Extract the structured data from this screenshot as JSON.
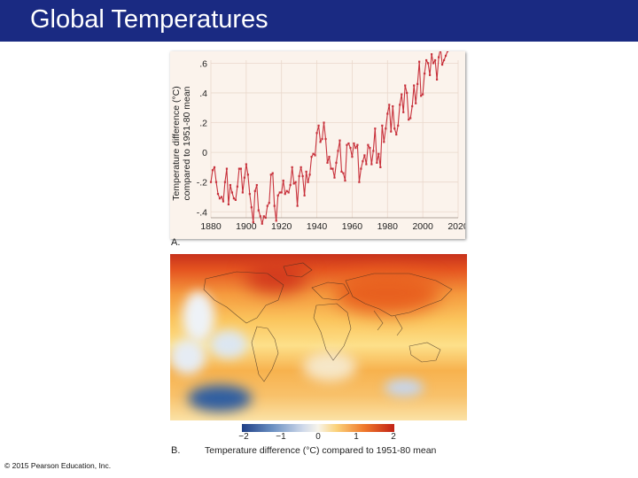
{
  "slide": {
    "title": "Global Temperatures",
    "copyright": "© 2015 Pearson Education, Inc."
  },
  "panel_a": {
    "label": "A."
  },
  "panel_b": {
    "label": "B.",
    "colorbar_ticks": [
      "−2",
      "−1",
      "0",
      "1",
      "2"
    ],
    "colorbar_caption": "Temperature difference (°C) compared to 1951-80 mean"
  },
  "colors": {
    "title_bar": "#1a2a82",
    "line": "#c8323c",
    "grid": "#ead8cc"
  },
  "chart_data": {
    "type": "line",
    "ylabel": "Temperature difference (°C) compared to 1951-80 mean",
    "xlabel": "",
    "xlim": [
      1880,
      2020
    ],
    "ylim": [
      -0.44,
      0.62
    ],
    "x_ticks": [
      1880,
      1900,
      1920,
      1940,
      1960,
      1980,
      2000,
      2020
    ],
    "x_tick_labels": [
      "1880",
      "1900",
      "1920",
      "1940",
      "1960",
      "1980",
      "2000",
      "2020"
    ],
    "y_ticks": [
      0.6,
      0.4,
      0.2,
      0,
      -0.2,
      -0.4
    ],
    "y_tick_labels": [
      ".6",
      ".4",
      ".2",
      "0",
      "-.2",
      "-.4"
    ],
    "grid": true,
    "series": [
      {
        "color": "#c8323c",
        "x": [
          1880,
          1881,
          1882,
          1883,
          1884,
          1885,
          1886,
          1887,
          1888,
          1889,
          1890,
          1891,
          1892,
          1893,
          1894,
          1895,
          1896,
          1897,
          1898,
          1899,
          1900,
          1901,
          1902,
          1903,
          1904,
          1905,
          1906,
          1907,
          1908,
          1909,
          1910,
          1911,
          1912,
          1913,
          1914,
          1915,
          1916,
          1917,
          1918,
          1919,
          1920,
          1921,
          1922,
          1923,
          1924,
          1925,
          1926,
          1927,
          1928,
          1929,
          1930,
          1931,
          1932,
          1933,
          1934,
          1935,
          1936,
          1937,
          1938,
          1939,
          1940,
          1941,
          1942,
          1943,
          1944,
          1945,
          1946,
          1947,
          1948,
          1949,
          1950,
          1951,
          1952,
          1953,
          1954,
          1955,
          1956,
          1957,
          1958,
          1959,
          1960,
          1961,
          1962,
          1963,
          1964,
          1965,
          1966,
          1967,
          1968,
          1969,
          1970,
          1971,
          1972,
          1973,
          1974,
          1975,
          1976,
          1977,
          1978,
          1979,
          1980,
          1981,
          1982,
          1983,
          1984,
          1985,
          1986,
          1987,
          1988,
          1989,
          1990,
          1991,
          1992,
          1993,
          1994,
          1995,
          1996,
          1997,
          1998,
          1999,
          2000,
          2001,
          2002,
          2003,
          2004,
          2005,
          2006,
          2007,
          2008,
          2009,
          2010,
          2011,
          2012,
          2013,
          2014
        ],
        "y": [
          -0.2,
          -0.12,
          -0.1,
          -0.2,
          -0.28,
          -0.31,
          -0.3,
          -0.33,
          -0.2,
          -0.11,
          -0.35,
          -0.22,
          -0.27,
          -0.31,
          -0.32,
          -0.23,
          -0.11,
          -0.11,
          -0.27,
          -0.17,
          -0.08,
          -0.15,
          -0.28,
          -0.37,
          -0.47,
          -0.26,
          -0.22,
          -0.39,
          -0.43,
          -0.48,
          -0.43,
          -0.44,
          -0.36,
          -0.34,
          -0.15,
          -0.14,
          -0.36,
          -0.46,
          -0.29,
          -0.27,
          -0.27,
          -0.19,
          -0.28,
          -0.26,
          -0.27,
          -0.22,
          -0.1,
          -0.21,
          -0.2,
          -0.36,
          -0.16,
          -0.1,
          -0.16,
          -0.29,
          -0.13,
          -0.2,
          -0.15,
          -0.03,
          -0.01,
          -0.02,
          0.13,
          0.18,
          0.07,
          0.09,
          0.2,
          0.09,
          -0.07,
          -0.03,
          -0.11,
          -0.11,
          -0.17,
          -0.07,
          0.01,
          0.08,
          -0.13,
          -0.14,
          -0.19,
          0.05,
          0.06,
          0.03,
          -0.03,
          0.06,
          0.03,
          0.05,
          -0.2,
          -0.11,
          -0.06,
          -0.02,
          -0.08,
          0.05,
          0.03,
          -0.08,
          0.01,
          0.16,
          -0.07,
          -0.01,
          -0.1,
          0.18,
          0.07,
          0.16,
          0.26,
          0.32,
          0.14,
          0.31,
          0.16,
          0.12,
          0.18,
          0.32,
          0.39,
          0.27,
          0.45,
          0.4,
          0.22,
          0.23,
          0.31,
          0.45,
          0.33,
          0.46,
          0.61,
          0.38,
          0.39,
          0.53,
          0.62,
          0.6,
          0.52,
          0.66,
          0.6,
          0.62,
          0.49,
          0.64,
          0.7,
          0.59,
          0.62,
          0.65,
          0.68
        ]
      }
    ]
  }
}
